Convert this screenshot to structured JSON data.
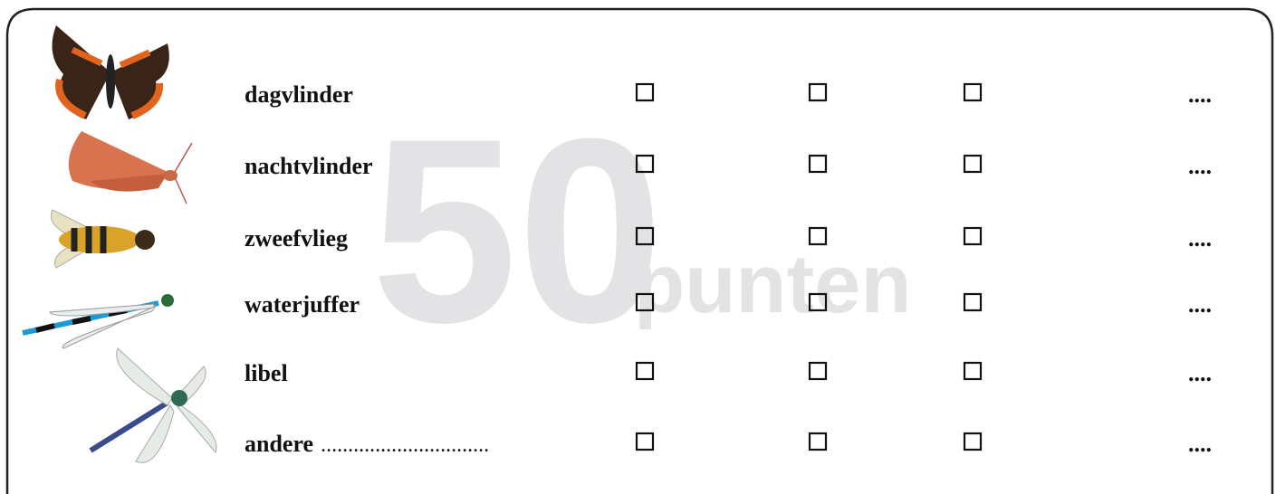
{
  "watermark": {
    "number": "50",
    "word": "punten"
  },
  "rows": [
    {
      "label": "dagvlinder",
      "count": "...."
    },
    {
      "label": "nachtvlinder",
      "count": "...."
    },
    {
      "label": "zweefvlieg",
      "count": "...."
    },
    {
      "label": "waterjuffer",
      "count": "...."
    },
    {
      "label": "libel",
      "count": "...."
    },
    {
      "label": "andere",
      "blank": "...............................",
      "count": "...."
    }
  ]
}
